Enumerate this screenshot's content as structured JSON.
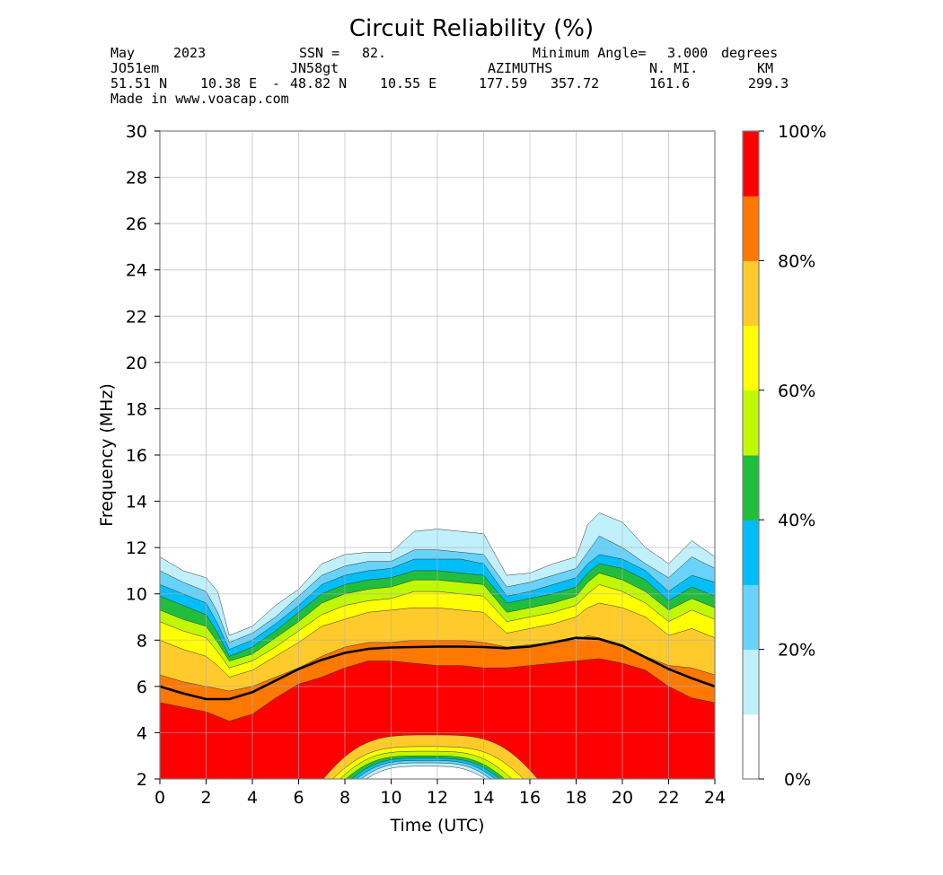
{
  "chart_data": {
    "type": "contour",
    "title": "Circuit Reliability (%)",
    "header": {
      "month": "May",
      "year": "2023",
      "ssn_label": "SSN =",
      "ssn": "82.",
      "min_angle_label": "Minimum Angle=",
      "min_angle": "3.000",
      "min_angle_unit": "degrees",
      "tx_locator": "JO51em",
      "rx_locator": "JN58gt",
      "azimuths_label": "AZIMUTHS",
      "nmi_label": "N. MI.",
      "km_label": "KM",
      "tx_lat": "51.51 N",
      "tx_lon": "10.38 E",
      "rx_lat": "48.82 N",
      "rx_lon": "10.55 E",
      "azimuth_1": "177.59",
      "azimuth_2": "357.72",
      "nmi": "161.6",
      "km": "299.3",
      "credit": "Made in www.voacap.com"
    },
    "xlabel": "Time (UTC)",
    "ylabel": "Frequency (MHz)",
    "xlim": [
      0,
      24
    ],
    "ylim": [
      2,
      30
    ],
    "xticks": [
      0,
      2,
      4,
      6,
      8,
      10,
      12,
      14,
      16,
      18,
      20,
      22,
      24
    ],
    "yticks": [
      2,
      4,
      6,
      8,
      10,
      12,
      14,
      16,
      18,
      20,
      22,
      24,
      26,
      28,
      30
    ],
    "grid": true,
    "colorbar": {
      "levels": [
        0,
        10,
        20,
        30,
        40,
        50,
        60,
        70,
        80,
        90,
        100
      ],
      "colors": [
        "#ffffff",
        "#c0f0fc",
        "#68d2f8",
        "#00bff8",
        "#20be3c",
        "#c0f800",
        "#ffff00",
        "#ffcb2c",
        "#ff7800",
        "#ff0000"
      ],
      "tick_values": [
        0,
        20,
        40,
        60,
        80,
        100
      ],
      "tick_labels": [
        "0%",
        "20%",
        "40%",
        "60%",
        "80%",
        "100%"
      ]
    },
    "muf_line": {
      "x": [
        0,
        1,
        2,
        3,
        4,
        5,
        6,
        7,
        8,
        9,
        10,
        11,
        12,
        13,
        14,
        15,
        16,
        17,
        18,
        19,
        20,
        21,
        22,
        23,
        24
      ],
      "y": [
        6.0,
        5.7,
        5.45,
        5.45,
        5.75,
        6.25,
        6.75,
        7.15,
        7.45,
        7.62,
        7.68,
        7.7,
        7.72,
        7.72,
        7.7,
        7.65,
        7.72,
        7.9,
        8.1,
        8.05,
        7.75,
        7.25,
        6.75,
        6.35,
        6.0
      ]
    },
    "contours": {
      "upper_bounds": [
        {
          "level": 10,
          "x": [
            0,
            1,
            2,
            2.5,
            3,
            4,
            5,
            6,
            7,
            8,
            9,
            10,
            11,
            12,
            13,
            14,
            15,
            16,
            17,
            18,
            18.5,
            19,
            20,
            21,
            22,
            23,
            24
          ],
          "y": [
            11.6,
            11.0,
            10.7,
            10.1,
            8.2,
            8.6,
            9.5,
            10.2,
            11.3,
            11.7,
            11.8,
            11.8,
            12.7,
            12.8,
            12.7,
            12.6,
            10.8,
            10.9,
            11.3,
            11.6,
            13.0,
            13.5,
            13.1,
            12.0,
            11.3,
            12.3,
            11.6
          ]
        },
        {
          "level": 20,
          "x": [
            0,
            1,
            2,
            2.5,
            3,
            4,
            5,
            6,
            7,
            8,
            9,
            10,
            11,
            12,
            13,
            14,
            15,
            16,
            17,
            18,
            18.5,
            19,
            20,
            21,
            22,
            23,
            24
          ],
          "y": [
            11.0,
            10.5,
            10.1,
            9.2,
            7.9,
            8.3,
            9.0,
            9.9,
            10.8,
            11.2,
            11.4,
            11.4,
            11.9,
            11.9,
            11.8,
            11.7,
            10.3,
            10.5,
            10.8,
            11.1,
            11.8,
            12.5,
            12.0,
            11.3,
            10.7,
            11.6,
            11.1
          ]
        },
        {
          "level": 30,
          "x": [
            0,
            1,
            2,
            2.5,
            3,
            4,
            5,
            6,
            7,
            8,
            9,
            10,
            11,
            12,
            13,
            14,
            15,
            16,
            17,
            18,
            18.5,
            19,
            20,
            21,
            22,
            23,
            24
          ],
          "y": [
            10.4,
            10.0,
            9.6,
            8.7,
            7.6,
            8.0,
            8.7,
            9.5,
            10.4,
            10.8,
            11.0,
            11.1,
            11.5,
            11.5,
            11.5,
            11.3,
            9.9,
            10.1,
            10.4,
            10.7,
            11.3,
            11.7,
            11.5,
            11.0,
            10.1,
            10.8,
            10.5
          ]
        },
        {
          "level": 40,
          "x": [
            0,
            1,
            2,
            2.5,
            3,
            4,
            5,
            6,
            7,
            8,
            9,
            10,
            11,
            12,
            13,
            14,
            15,
            16,
            17,
            18,
            18.5,
            19,
            20,
            21,
            22,
            23,
            24
          ],
          "y": [
            9.9,
            9.5,
            9.1,
            8.3,
            7.3,
            7.7,
            8.4,
            9.2,
            10.0,
            10.4,
            10.6,
            10.7,
            11.0,
            11.0,
            10.9,
            10.8,
            9.6,
            9.8,
            10.0,
            10.3,
            10.9,
            11.3,
            11.1,
            10.6,
            9.7,
            10.3,
            9.9
          ]
        },
        {
          "level": 50,
          "x": [
            0,
            1,
            2,
            2.5,
            3,
            4,
            5,
            6,
            7,
            8,
            9,
            10,
            11,
            12,
            13,
            14,
            15,
            16,
            17,
            18,
            18.5,
            19,
            20,
            21,
            22,
            23,
            24
          ],
          "y": [
            9.3,
            8.9,
            8.6,
            7.9,
            7.1,
            7.4,
            8.1,
            8.8,
            9.6,
            10.0,
            10.2,
            10.3,
            10.6,
            10.6,
            10.5,
            10.4,
            9.2,
            9.4,
            9.6,
            9.9,
            10.5,
            10.9,
            10.6,
            10.1,
            9.3,
            9.8,
            9.4
          ]
        },
        {
          "level": 60,
          "x": [
            0,
            1,
            2,
            2.5,
            3,
            4,
            5,
            6,
            7,
            8,
            9,
            10,
            11,
            12,
            13,
            14,
            15,
            16,
            17,
            18,
            18.5,
            19,
            20,
            21,
            22,
            23,
            24
          ],
          "y": [
            8.8,
            8.4,
            8.1,
            7.5,
            6.8,
            7.1,
            7.7,
            8.4,
            9.1,
            9.5,
            9.7,
            9.8,
            10.1,
            10.1,
            10.0,
            9.9,
            8.8,
            9.0,
            9.2,
            9.5,
            10.0,
            10.4,
            10.1,
            9.6,
            8.8,
            9.3,
            8.9
          ]
        },
        {
          "level": 70,
          "x": [
            0,
            1,
            2,
            2.5,
            3,
            4,
            5,
            6,
            7,
            8,
            9,
            10,
            11,
            12,
            13,
            14,
            15,
            16,
            17,
            18,
            18.5,
            19,
            20,
            21,
            22,
            23,
            24
          ],
          "y": [
            8.0,
            7.6,
            7.3,
            6.9,
            6.4,
            6.7,
            7.3,
            7.9,
            8.6,
            8.9,
            9.2,
            9.3,
            9.4,
            9.4,
            9.3,
            9.2,
            8.3,
            8.5,
            8.7,
            9.0,
            9.4,
            9.6,
            9.4,
            9.0,
            8.2,
            8.5,
            8.1
          ]
        },
        {
          "level": 80,
          "x": [
            0,
            1,
            2,
            2.5,
            3,
            4,
            5,
            6,
            7,
            8,
            9,
            10,
            11,
            12,
            13,
            14,
            15,
            16,
            17,
            18,
            18.5,
            19,
            20,
            21,
            22,
            23,
            24
          ],
          "y": [
            6.5,
            6.2,
            6.0,
            5.9,
            5.8,
            6.0,
            6.4,
            6.8,
            7.3,
            7.7,
            7.9,
            7.9,
            8.0,
            8.0,
            8.0,
            7.9,
            7.7,
            7.8,
            7.9,
            8.0,
            8.2,
            8.1,
            7.8,
            7.3,
            6.9,
            6.8,
            6.5
          ]
        },
        {
          "level": 90,
          "x": [
            0,
            1,
            2,
            3,
            4,
            5,
            6,
            7,
            8,
            9,
            10,
            11,
            12,
            13,
            14,
            15,
            16,
            17,
            18,
            19,
            20,
            21,
            22,
            23,
            24
          ],
          "y": [
            5.3,
            5.1,
            4.9,
            4.5,
            4.8,
            5.5,
            6.1,
            6.4,
            6.8,
            7.1,
            7.1,
            7.0,
            6.9,
            6.9,
            6.8,
            6.8,
            6.9,
            7.0,
            7.1,
            7.2,
            7.0,
            6.7,
            6.0,
            5.5,
            5.3
          ]
        }
      ],
      "daytime_bowl": {
        "levels_top": [
          80,
          70,
          60,
          50,
          40,
          30,
          20,
          10
        ],
        "x_start": [
          7.0,
          7.4,
          7.7,
          7.95,
          8.2,
          8.4,
          8.6,
          8.8
        ],
        "x_end": [
          16.4,
          15.8,
          15.3,
          15.0,
          14.8,
          14.6,
          14.4,
          14.2
        ],
        "y_peak": [
          3.9,
          3.4,
          3.2,
          3.0,
          2.9,
          2.8,
          2.7,
          2.55
        ]
      }
    }
  }
}
